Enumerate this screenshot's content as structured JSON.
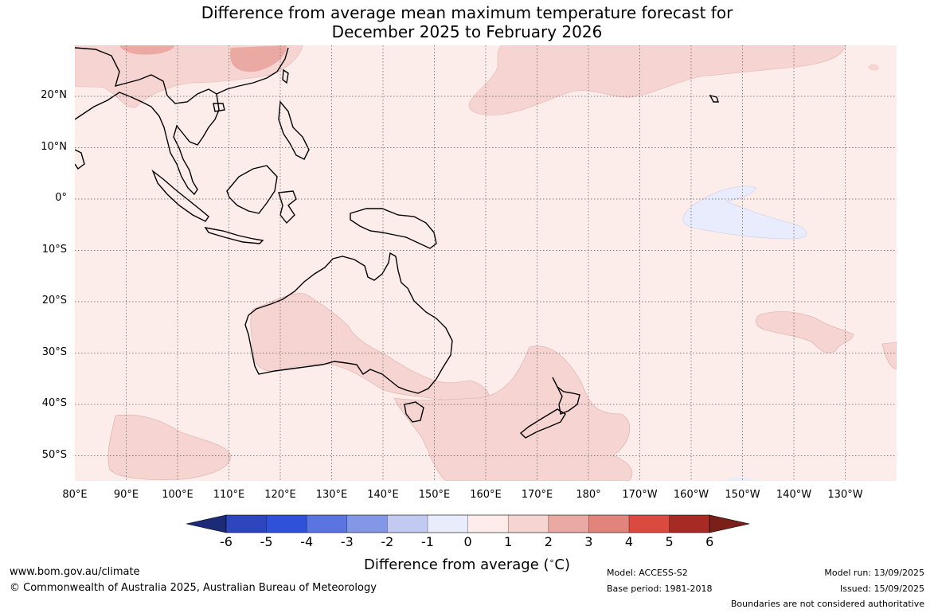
{
  "title_line1": "Difference from average mean maximum temperature forecast for",
  "title_line2": "December 2025 to February 2026",
  "map": {
    "lon_labels": [
      "80°E",
      "90°E",
      "100°E",
      "110°E",
      "120°E",
      "130°E",
      "140°E",
      "150°E",
      "160°E",
      "170°E",
      "180°",
      "170°W",
      "160°W",
      "150°W",
      "140°W",
      "130°W"
    ],
    "lat_labels": [
      "20°N",
      "10°N",
      "0°",
      "10°S",
      "20°S",
      "30°S",
      "40°S",
      "50°S"
    ],
    "regions": [
      {
        "label": "Central Pacific",
        "anomaly": "0 to -1"
      },
      {
        "label": "Australia",
        "anomaly": "1 to 2"
      },
      {
        "label": "Tasman Sea / New Zealand",
        "anomaly": "1 to 2"
      },
      {
        "label": "Southern China",
        "anomaly": "2 to 3"
      }
    ]
  },
  "colorbar": {
    "ticks": [
      "-6",
      "-5",
      "-4",
      "-3",
      "-2",
      "-1",
      "0",
      "1",
      "2",
      "3",
      "4",
      "5",
      "6"
    ],
    "colors": [
      "#243a9e",
      "#2d46be",
      "#2f50d8",
      "#5b75e0",
      "#8298e6",
      "#c2caf2",
      "#e8ecfc",
      "#fdecea",
      "#f5d4d2",
      "#eaa9a3",
      "#e2847b",
      "#da4a3e",
      "#a82a24"
    ],
    "end_low": "#1b2b78",
    "end_high": "#7a1f1a",
    "title": "Difference from average (",
    "title_unit": "C)"
  },
  "footer": {
    "site": "www.bom.gov.au/climate",
    "copyright": "© Commonwealth of Australia 2025, Australian Bureau of Meteorology",
    "model": "Model: ACCESS-S2",
    "base_period": "Base period: 1981-2018",
    "model_run": "Model run: 13/09/2025",
    "issued": "Issued: 15/09/2025",
    "disclaimer": "Boundaries are not considered authoritative"
  }
}
